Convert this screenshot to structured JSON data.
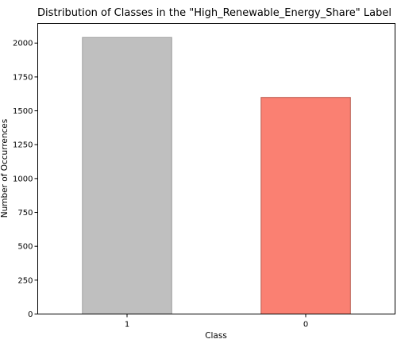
{
  "chart_data": {
    "type": "bar",
    "title": "Distribution of Classes in the \"High_Renewable_Energy_Share\" Label",
    "xlabel": "Class",
    "ylabel": "Number of Occurrences",
    "categories": [
      "1",
      "0"
    ],
    "values": [
      2041,
      1599
    ],
    "bar_colors": [
      "#bfbfbf",
      "#fa8072"
    ],
    "bar_edge_colors": [
      "#9e9e9e",
      "#b85a4e"
    ],
    "ylim": [
      0,
      2145
    ],
    "yticks": [
      0,
      250,
      500,
      750,
      1000,
      1250,
      1500,
      1750,
      2000
    ],
    "grid": false,
    "legend": "none"
  }
}
